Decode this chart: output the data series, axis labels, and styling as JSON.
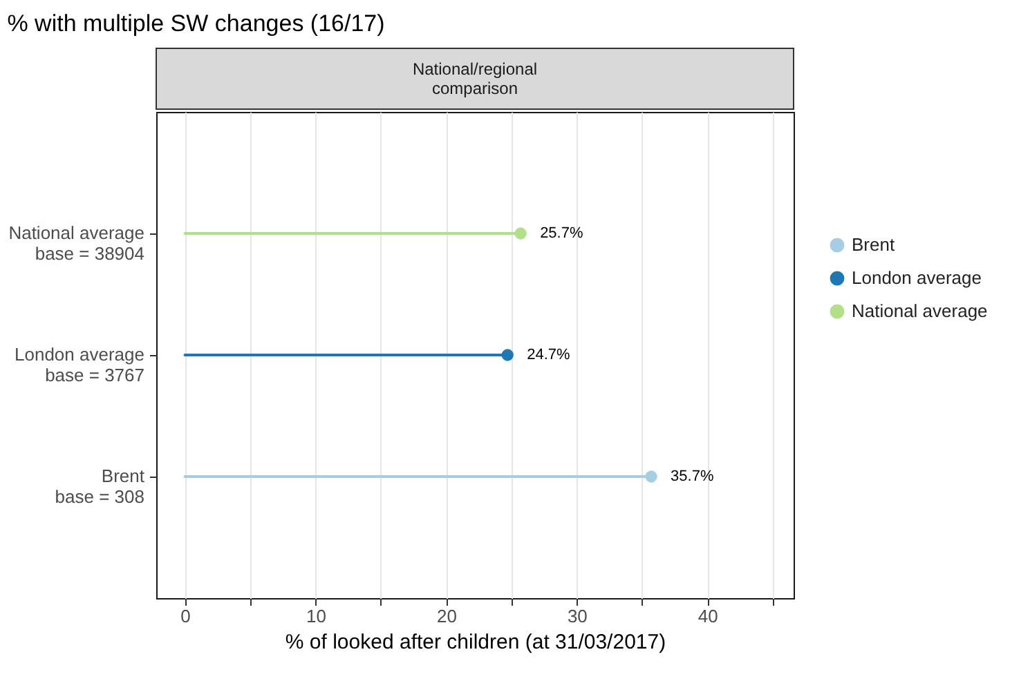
{
  "chart_data": {
    "type": "lollipop",
    "orientation": "horizontal",
    "title": "% with multiple SW changes (16/17)",
    "subtitle": "National/regional comparison",
    "xlabel": "% of looked after children (at 31/03/2017)",
    "categories": [
      "National average\nbase = 38904",
      "London average\nbase = 3767",
      "Brent\nbase = 308"
    ],
    "series": [
      {
        "name": "Brent",
        "color": "#a6cee3",
        "values": [
          null,
          null,
          35.7
        ],
        "value_labels": [
          null,
          null,
          "35.7%"
        ]
      },
      {
        "name": "London average",
        "color": "#1f78b4",
        "values": [
          null,
          24.7,
          null
        ],
        "value_labels": [
          null,
          "24.7%",
          null
        ]
      },
      {
        "name": "National average",
        "color": "#b2df8a",
        "values": [
          25.7,
          null,
          null
        ],
        "value_labels": [
          "25.7%",
          null,
          null
        ]
      }
    ],
    "xlim": [
      -2.2,
      46.6
    ],
    "xticks": [
      0,
      {
        "value": 5,
        "label": null
      },
      10,
      {
        "value": 15,
        "label": null
      },
      20,
      {
        "value": 25,
        "label": null
      },
      30,
      {
        "value": 35,
        "label": null
      },
      40,
      {
        "value": 45,
        "label": null
      }
    ],
    "grid": "x",
    "legend": "right",
    "marker": "circle"
  }
}
